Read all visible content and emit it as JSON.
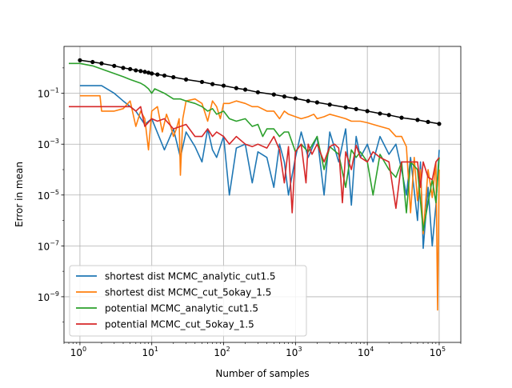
{
  "chart_data": {
    "type": "line",
    "title": "",
    "xlabel": "Number of samples",
    "ylabel": "Error in mean",
    "xscale": "log",
    "yscale": "log",
    "xlim": [
      0.6,
      200000
    ],
    "ylim": [
      1.6e-11,
      7
    ],
    "grid": true,
    "legend_position": "lower-left",
    "x_ticks": [
      {
        "value": 1,
        "base": "10",
        "exp": "0"
      },
      {
        "value": 10,
        "base": "10",
        "exp": "1"
      },
      {
        "value": 100,
        "base": "10",
        "exp": "2"
      },
      {
        "value": 1000,
        "base": "10",
        "exp": "3"
      },
      {
        "value": 10000,
        "base": "10",
        "exp": "4"
      },
      {
        "value": 100000,
        "base": "10",
        "exp": "5"
      }
    ],
    "y_ticks": [
      {
        "value": 1e-09,
        "base": "10",
        "exp": "−9"
      },
      {
        "value": 1e-07,
        "base": "10",
        "exp": "−7"
      },
      {
        "value": 1e-05,
        "base": "10",
        "exp": "−5"
      },
      {
        "value": 0.001,
        "base": "10",
        "exp": "−3"
      },
      {
        "value": 0.1,
        "base": "10",
        "exp": "−1"
      }
    ],
    "series": [
      {
        "name": "shortest dist MCMC_analytic_cut1.5",
        "color": "#1f77b4",
        "points": [
          [
            1,
            0.2
          ],
          [
            2,
            0.2
          ],
          [
            3,
            0.1
          ],
          [
            4,
            0.05
          ],
          [
            6,
            0.02
          ],
          [
            8,
            0.006
          ],
          [
            10,
            0.01
          ],
          [
            15,
            0.0006
          ],
          [
            20,
            0.004
          ],
          [
            25,
            0.0003
          ],
          [
            30,
            0.003
          ],
          [
            40,
            0.0008
          ],
          [
            50,
            0.0002
          ],
          [
            60,
            0.004
          ],
          [
            70,
            0.0006
          ],
          [
            80,
            0.0003
          ],
          [
            100,
            0.002
          ],
          [
            120,
            1e-05
          ],
          [
            150,
            0.0007
          ],
          [
            200,
            0.001
          ],
          [
            250,
            3e-05
          ],
          [
            300,
            0.0005
          ],
          [
            400,
            0.0003
          ],
          [
            500,
            2e-05
          ],
          [
            600,
            0.001
          ],
          [
            700,
            0.0002
          ],
          [
            800,
            1e-05
          ],
          [
            1000,
            0.0003
          ],
          [
            1200,
            0.003
          ],
          [
            1500,
            0.0003
          ],
          [
            2000,
            0.002
          ],
          [
            2500,
            1e-05
          ],
          [
            3000,
            0.003
          ],
          [
            4000,
            0.0002
          ],
          [
            5000,
            0.004
          ],
          [
            6000,
            4e-06
          ],
          [
            7000,
            0.002
          ],
          [
            8000,
            0.0003
          ],
          [
            10000,
            0.001
          ],
          [
            12000,
            0.0002
          ],
          [
            15000,
            0.002
          ],
          [
            20000,
            0.0004
          ],
          [
            25000,
            0.001
          ],
          [
            30000,
            0.0001
          ],
          [
            35000,
            1e-05
          ],
          [
            40000,
            0.0003
          ],
          [
            50000,
            1e-06
          ],
          [
            55000,
            0.0002
          ],
          [
            60000,
            8e-08
          ],
          [
            70000,
            2e-05
          ],
          [
            80000,
            1e-07
          ],
          [
            90000,
            4e-06
          ],
          [
            100000,
            0.0006
          ]
        ]
      },
      {
        "name": "shortest dist MCMC_cut_5okay_1.5",
        "color": "#ff7f0e",
        "points": [
          [
            1,
            0.08
          ],
          [
            1.9,
            0.08
          ],
          [
            2,
            0.02
          ],
          [
            3,
            0.02
          ],
          [
            4,
            0.025
          ],
          [
            5,
            0.05
          ],
          [
            6,
            0.005
          ],
          [
            7,
            0.02
          ],
          [
            8,
            0.01
          ],
          [
            9,
            0.0006
          ],
          [
            10,
            0.02
          ],
          [
            12,
            0.03
          ],
          [
            14,
            0.003
          ],
          [
            16,
            0.015
          ],
          [
            18,
            0.006
          ],
          [
            20,
            0.002
          ],
          [
            22,
            0.004
          ],
          [
            24,
            0.01
          ],
          [
            25,
            6e-05
          ],
          [
            27,
            0.01
          ],
          [
            30,
            0.05
          ],
          [
            40,
            0.06
          ],
          [
            50,
            0.04
          ],
          [
            60,
            0.008
          ],
          [
            70,
            0.05
          ],
          [
            80,
            0.03
          ],
          [
            90,
            0.01
          ],
          [
            100,
            0.04
          ],
          [
            120,
            0.04
          ],
          [
            150,
            0.05
          ],
          [
            200,
            0.04
          ],
          [
            250,
            0.03
          ],
          [
            300,
            0.03
          ],
          [
            400,
            0.02
          ],
          [
            500,
            0.02
          ],
          [
            600,
            0.01
          ],
          [
            700,
            0.02
          ],
          [
            800,
            0.015
          ],
          [
            1000,
            0.012
          ],
          [
            1200,
            0.01
          ],
          [
            1500,
            0.012
          ],
          [
            1800,
            0.015
          ],
          [
            2000,
            0.01
          ],
          [
            2500,
            0.012
          ],
          [
            3000,
            0.015
          ],
          [
            4000,
            0.012
          ],
          [
            5000,
            0.01
          ],
          [
            6000,
            0.008
          ],
          [
            7000,
            0.008
          ],
          [
            8000,
            0.008
          ],
          [
            10000,
            0.007
          ],
          [
            12000,
            0.006
          ],
          [
            15000,
            0.005
          ],
          [
            20000,
            0.004
          ],
          [
            25000,
            0.002
          ],
          [
            30000,
            0.002
          ],
          [
            35000,
            0.0008
          ],
          [
            40000,
            2e-06
          ],
          [
            45000,
            0.0003
          ],
          [
            50000,
            6e-06
          ],
          [
            55000,
            0.0001
          ],
          [
            60000,
            3e-07
          ],
          [
            70000,
            0.0001
          ],
          [
            80000,
            8e-06
          ],
          [
            90000,
            0.0002
          ],
          [
            95000,
            3e-10
          ],
          [
            100000,
            0.0001
          ]
        ]
      },
      {
        "name": "potential MCMC_analytic_cut1.5",
        "color": "#2ca02c",
        "points": [
          [
            0.7,
            1.5
          ],
          [
            1,
            1.5
          ],
          [
            1.5,
            1.2
          ],
          [
            2,
            0.9
          ],
          [
            3,
            0.6
          ],
          [
            4,
            0.45
          ],
          [
            5,
            0.35
          ],
          [
            7,
            0.25
          ],
          [
            8,
            0.2
          ],
          [
            9,
            0.15
          ],
          [
            10,
            0.1
          ],
          [
            11,
            0.15
          ],
          [
            15,
            0.1
          ],
          [
            20,
            0.06
          ],
          [
            25,
            0.06
          ],
          [
            30,
            0.05
          ],
          [
            40,
            0.04
          ],
          [
            50,
            0.03
          ],
          [
            60,
            0.02
          ],
          [
            70,
            0.025
          ],
          [
            80,
            0.015
          ],
          [
            100,
            0.02
          ],
          [
            120,
            0.01
          ],
          [
            150,
            0.008
          ],
          [
            200,
            0.01
          ],
          [
            250,
            0.005
          ],
          [
            300,
            0.006
          ],
          [
            350,
            0.002
          ],
          [
            400,
            0.004
          ],
          [
            500,
            0.004
          ],
          [
            600,
            0.002
          ],
          [
            700,
            0.003
          ],
          [
            800,
            0.003
          ],
          [
            1000,
            0.0005
          ],
          [
            1200,
            0.001
          ],
          [
            1500,
            0.0005
          ],
          [
            2000,
            0.002
          ],
          [
            2500,
            0.0001
          ],
          [
            3000,
            0.0008
          ],
          [
            4000,
            0.0004
          ],
          [
            5000,
            2e-05
          ],
          [
            6000,
            0.0006
          ],
          [
            7000,
            0.0003
          ],
          [
            8000,
            0.0005
          ],
          [
            10000,
            0.0002
          ],
          [
            12000,
            1e-05
          ],
          [
            15000,
            0.0004
          ],
          [
            20000,
            0.0001
          ],
          [
            25000,
            5e-05
          ],
          [
            30000,
            0.0002
          ],
          [
            35000,
            2e-06
          ],
          [
            40000,
            0.0002
          ],
          [
            50000,
            0.0001
          ],
          [
            60000,
            4e-07
          ],
          [
            70000,
            5e-06
          ],
          [
            80000,
            4e-05
          ],
          [
            90000,
            5e-06
          ],
          [
            100000,
            0.0003
          ]
        ]
      },
      {
        "name": "potential MCMC_cut_5okay_1.5",
        "color": "#d62728",
        "points": [
          [
            0.7,
            0.03
          ],
          [
            4,
            0.03
          ],
          [
            5,
            0.03
          ],
          [
            6,
            0.02
          ],
          [
            7,
            0.03
          ],
          [
            8,
            0.005
          ],
          [
            10,
            0.01
          ],
          [
            12,
            0.008
          ],
          [
            15,
            0.01
          ],
          [
            20,
            0.004
          ],
          [
            30,
            0.006
          ],
          [
            40,
            0.002
          ],
          [
            50,
            0.002
          ],
          [
            60,
            0.004
          ],
          [
            70,
            0.002
          ],
          [
            80,
            0.003
          ],
          [
            100,
            0.002
          ],
          [
            120,
            0.001
          ],
          [
            150,
            0.002
          ],
          [
            200,
            0.001
          ],
          [
            250,
            0.0008
          ],
          [
            300,
            0.001
          ],
          [
            400,
            0.0007
          ],
          [
            500,
            0.002
          ],
          [
            600,
            0.0006
          ],
          [
            700,
            3e-05
          ],
          [
            800,
            0.0008
          ],
          [
            900,
            2e-06
          ],
          [
            1000,
            0.0005
          ],
          [
            1200,
            0.001
          ],
          [
            1400,
            3e-05
          ],
          [
            1500,
            0.001
          ],
          [
            1700,
            0.0004
          ],
          [
            2000,
            0.001
          ],
          [
            2500,
            0.0002
          ],
          [
            3000,
            0.0008
          ],
          [
            3500,
            0.001
          ],
          [
            4000,
            0.0007
          ],
          [
            4500,
            5e-06
          ],
          [
            5000,
            0.0005
          ],
          [
            6000,
            0.0001
          ],
          [
            7000,
            0.0009
          ],
          [
            8000,
            0.0003
          ],
          [
            10000,
            0.0002
          ],
          [
            12000,
            0.0005
          ],
          [
            15000,
            0.0003
          ],
          [
            20000,
            0.0002
          ],
          [
            25000,
            3e-06
          ],
          [
            30000,
            0.0002
          ],
          [
            40000,
            0.0002
          ],
          [
            50000,
            0.0002
          ],
          [
            55000,
            2e-05
          ],
          [
            60000,
            0.0002
          ],
          [
            70000,
            5e-05
          ],
          [
            80000,
            4e-05
          ],
          [
            90000,
            0.0002
          ],
          [
            100000,
            0.0003
          ]
        ]
      },
      {
        "name": "",
        "color": "#000000",
        "markers": true,
        "points": [
          [
            1,
            2
          ],
          [
            1.5,
            1.7
          ],
          [
            2,
            1.5
          ],
          [
            3,
            1.2
          ],
          [
            4,
            1
          ],
          [
            5,
            0.9
          ],
          [
            6,
            0.8
          ],
          [
            7,
            0.75
          ],
          [
            8,
            0.7
          ],
          [
            9,
            0.65
          ],
          [
            10,
            0.6
          ],
          [
            12,
            0.55
          ],
          [
            15,
            0.5
          ],
          [
            20,
            0.43
          ],
          [
            30,
            0.35
          ],
          [
            50,
            0.28
          ],
          [
            70,
            0.23
          ],
          [
            100,
            0.2
          ],
          [
            150,
            0.16
          ],
          [
            200,
            0.14
          ],
          [
            300,
            0.11
          ],
          [
            500,
            0.09
          ],
          [
            700,
            0.075
          ],
          [
            1000,
            0.063
          ],
          [
            1500,
            0.05
          ],
          [
            2000,
            0.044
          ],
          [
            3000,
            0.036
          ],
          [
            5000,
            0.028
          ],
          [
            7000,
            0.024
          ],
          [
            10000,
            0.02
          ],
          [
            15000,
            0.016
          ],
          [
            20000,
            0.014
          ],
          [
            30000,
            0.011
          ],
          [
            50000,
            0.009
          ],
          [
            70000,
            0.0075
          ],
          [
            100000,
            0.0063
          ]
        ]
      }
    ]
  }
}
